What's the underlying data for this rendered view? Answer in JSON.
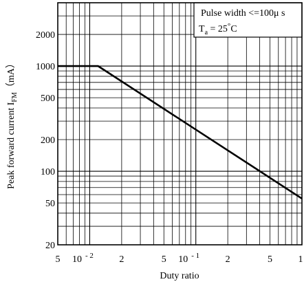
{
  "chart_data": {
    "type": "line",
    "xlabel": "Duty ratio",
    "ylabel_main": "Peak forward current I",
    "ylabel_sub": "FM",
    "ylabel_unit": "（mA）",
    "xscale": "log",
    "yscale": "log",
    "xlim": [
      0.005,
      1
    ],
    "ylim": [
      20,
      4000
    ],
    "grid": true,
    "series": [
      {
        "x": [
          0.005,
          0.012,
          1
        ],
        "y": [
          1000,
          1000,
          55
        ]
      }
    ],
    "x_ticks": [
      {
        "value": 0.005,
        "label": "5"
      },
      {
        "value": 0.01,
        "base": "10",
        "exp": "- 2"
      },
      {
        "value": 0.02,
        "label": "2"
      },
      {
        "value": 0.05,
        "label": "5"
      },
      {
        "value": 0.1,
        "base": "10",
        "exp": "- 1"
      },
      {
        "value": 0.2,
        "label": "2"
      },
      {
        "value": 0.5,
        "label": "5"
      },
      {
        "value": 1,
        "label": "1"
      }
    ],
    "y_ticks": [
      {
        "value": 20,
        "label": "20"
      },
      {
        "value": 50,
        "label": "50"
      },
      {
        "value": 100,
        "label": "100"
      },
      {
        "value": 200,
        "label": "200"
      },
      {
        "value": 500,
        "label": "500"
      },
      {
        "value": 1000,
        "label": "1000"
      },
      {
        "value": 2000,
        "label": "2000"
      }
    ],
    "annotation": {
      "line1": "Pulse width <=100μ s",
      "line2_base": "T",
      "line2_sub": "a",
      "line2_rest": " =  25",
      "line2_deg": "°",
      "line2_unit": "C"
    }
  }
}
